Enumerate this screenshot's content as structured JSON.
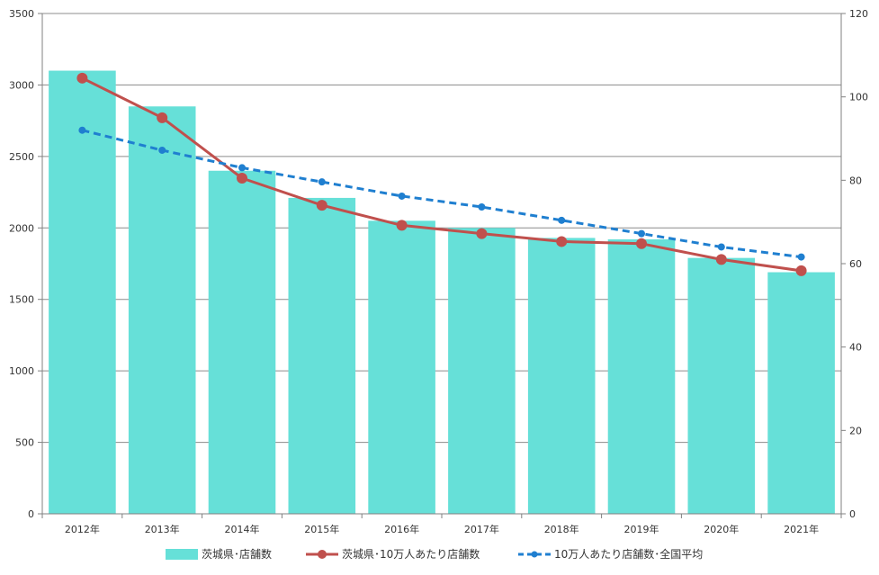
{
  "chart_data": {
    "type": "bar",
    "categories": [
      "2012年",
      "2013年",
      "2014年",
      "2015年",
      "2016年",
      "2017年",
      "2018年",
      "2019年",
      "2020年",
      "2021年"
    ],
    "y_left": {
      "ylim": [
        0,
        3500
      ],
      "ticks": [
        0,
        500,
        1000,
        1500,
        2000,
        2500,
        3000,
        3500
      ]
    },
    "y_right": {
      "ylim": [
        0,
        120
      ],
      "ticks": [
        0,
        20,
        40,
        60,
        80,
        100,
        120
      ]
    },
    "grid": true,
    "legend_position": "bottom",
    "series": [
      {
        "name": "茨城県･店舗数",
        "kind": "bar",
        "axis": "left",
        "color": "#66E0D8",
        "values": [
          3100,
          2850,
          2400,
          2210,
          2050,
          2000,
          1930,
          1920,
          1790,
          1690
        ]
      },
      {
        "name": "茨城県･10万人あたり店舗数",
        "kind": "line",
        "axis": "right",
        "color": "#C0504D",
        "values": [
          104.5,
          95.0,
          80.5,
          74.0,
          69.2,
          67.2,
          65.3,
          64.8,
          61.0,
          58.3
        ]
      },
      {
        "name": "10万人あたり店舗数･全国平均",
        "kind": "line-dashed",
        "axis": "right",
        "color": "#1F7FD0",
        "values": [
          92.0,
          87.2,
          83.0,
          79.6,
          76.2,
          73.6,
          70.4,
          67.2,
          64.0,
          61.6
        ]
      }
    ]
  }
}
